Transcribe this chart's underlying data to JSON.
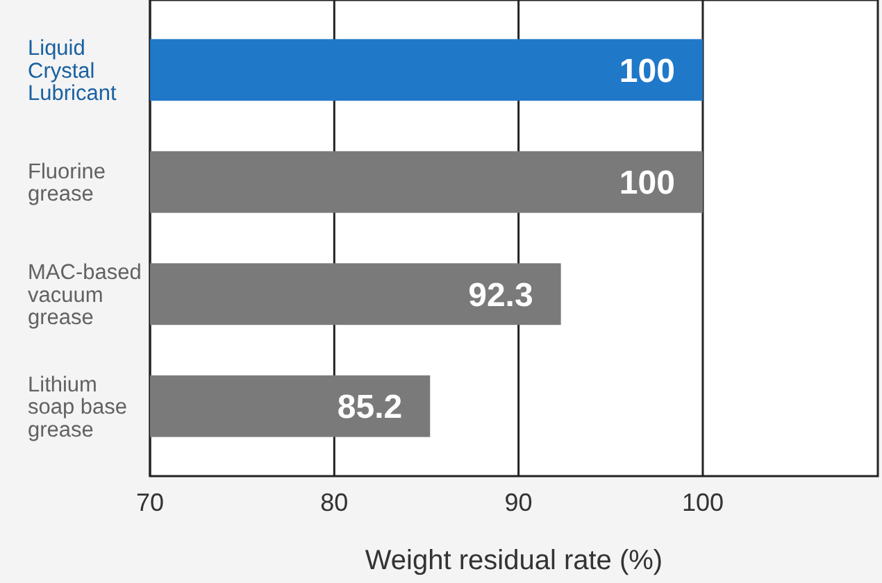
{
  "chart_data": {
    "type": "bar",
    "orientation": "horizontal",
    "xlabel": "Weight residual rate (%)",
    "categories": [
      "Liquid Crystal Lubricant",
      "Fluorine grease",
      "MAC-based vacuum grease",
      "Lithium soap base grease"
    ],
    "values": [
      100,
      100,
      92.3,
      85.2
    ],
    "colors": [
      "#1f78c8",
      "#7a7a7a",
      "#7a7a7a",
      "#7a7a7a"
    ],
    "xlim": [
      70,
      109.5
    ],
    "xticks": [
      70,
      80,
      90,
      100
    ],
    "grid": "x",
    "data_labels": true
  }
}
